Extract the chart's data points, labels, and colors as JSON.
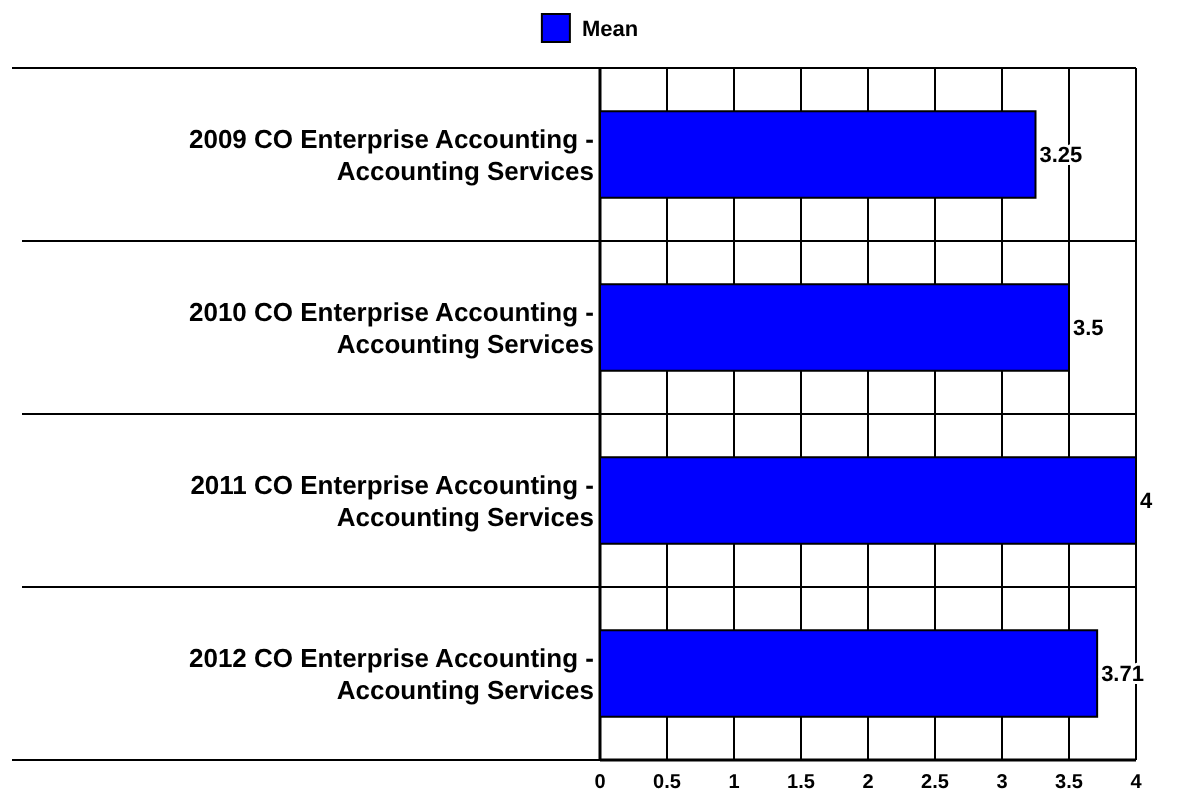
{
  "chart_data": {
    "type": "bar",
    "orientation": "horizontal",
    "categories": [
      "2009 CO Enterprise Accounting - Accounting Services",
      "2010 CO Enterprise Accounting - Accounting Services",
      "2011 CO Enterprise Accounting - Accounting Services",
      "2012 CO Enterprise Accounting - Accounting Services"
    ],
    "series": [
      {
        "name": "Mean",
        "color": "#0000ff",
        "values": [
          3.25,
          3.5,
          4,
          3.71
        ]
      }
    ],
    "xlim": [
      0,
      4
    ],
    "xticks": [
      0,
      0.5,
      1,
      1.5,
      2,
      2.5,
      3,
      3.5,
      4
    ],
    "grid": true,
    "legend": "top",
    "data_labels": true
  }
}
